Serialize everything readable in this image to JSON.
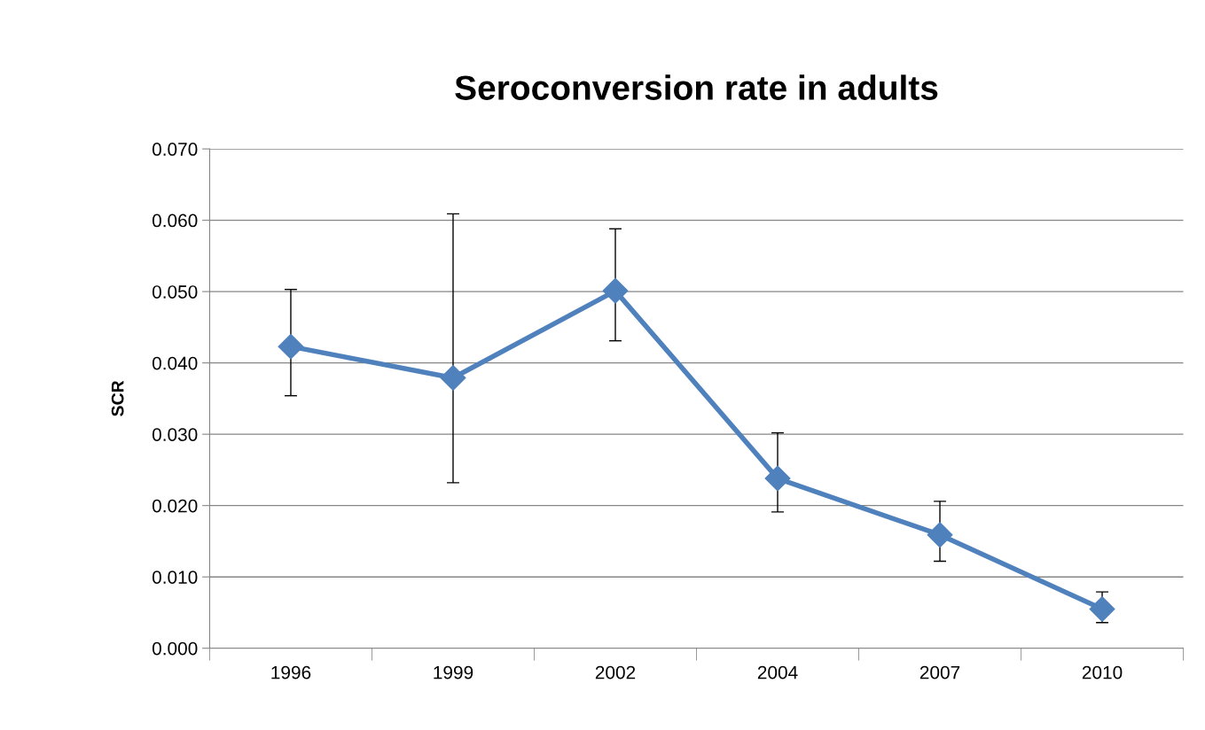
{
  "chart_data": {
    "type": "line",
    "title": "Seroconversion rate in adults",
    "ylabel": "SCR",
    "categories": [
      "1996",
      "1999",
      "2002",
      "2004",
      "2007",
      "2010"
    ],
    "series": [
      {
        "color": "#4f81bd",
        "values": [
          0.0423,
          0.0379,
          0.0501,
          0.0238,
          0.0159,
          0.0055
        ],
        "errors": [
          [
            0.0354,
            0.0503
          ],
          [
            0.0232,
            0.0609
          ],
          [
            0.0431,
            0.0588
          ],
          [
            0.0191,
            0.0302
          ],
          [
            0.0122,
            0.0206
          ],
          [
            0.0036,
            0.0079
          ]
        ]
      }
    ],
    "ylim": [
      0,
      0.07
    ],
    "yticks": [
      {
        "value": 0,
        "label": "0.000"
      },
      {
        "value": 0.01,
        "label": "0.010"
      },
      {
        "value": 0.02,
        "label": "0.020"
      },
      {
        "value": 0.03,
        "label": "0.030"
      },
      {
        "value": 0.04,
        "label": "0.040"
      },
      {
        "value": 0.05,
        "label": "0.050"
      },
      {
        "value": 0.06,
        "label": "0.060"
      },
      {
        "value": 0.07,
        "label": "0.070"
      }
    ],
    "grid": "y",
    "marker": "diamond",
    "line_style": "solid"
  }
}
